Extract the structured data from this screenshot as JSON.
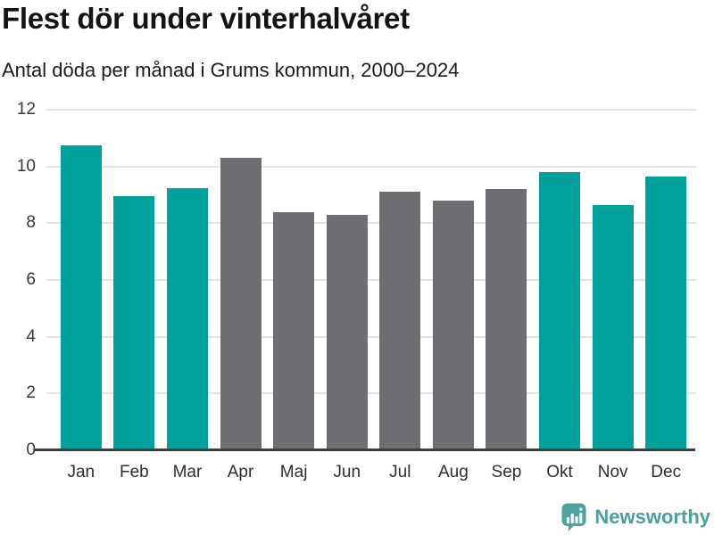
{
  "chart_data": {
    "type": "bar",
    "title": "Flest dör under vinterhalvåret",
    "subtitle": "Antal döda per månad i Grums kommun, 2000–2024",
    "categories": [
      "Jan",
      "Feb",
      "Mar",
      "Apr",
      "Maj",
      "Jun",
      "Jul",
      "Aug",
      "Sep",
      "Okt",
      "Nov",
      "Dec"
    ],
    "values": [
      10.75,
      8.95,
      9.25,
      10.3,
      8.4,
      8.3,
      9.1,
      8.8,
      9.2,
      9.8,
      8.65,
      9.65
    ],
    "bar_color_keys": [
      "teal",
      "teal",
      "teal",
      "gray",
      "gray",
      "gray",
      "gray",
      "gray",
      "gray",
      "teal",
      "teal",
      "teal"
    ],
    "colors": {
      "teal": "#00a19a",
      "gray": "#6e6e73"
    },
    "ylabel": "",
    "xlabel": "",
    "ylim": [
      0,
      12
    ],
    "yticks": [
      0,
      2,
      4,
      6,
      8,
      10,
      12
    ],
    "grid": true,
    "legend": false,
    "gridline_color": "#e3e3e3",
    "axis_color": "#3d3d3d"
  },
  "branding": {
    "name": "Newsworthy",
    "color": "#4aa09b",
    "logo_icon": "speech-bubble-bar-chart-icon"
  }
}
